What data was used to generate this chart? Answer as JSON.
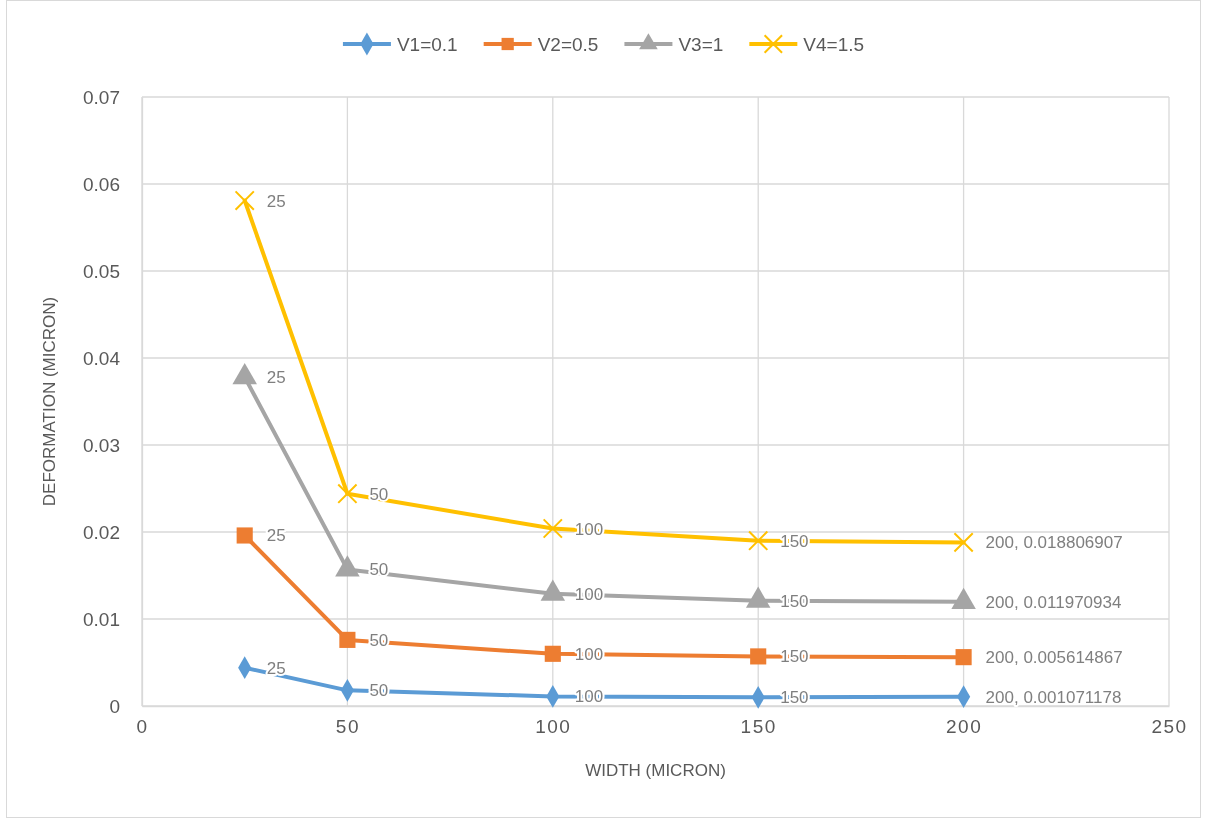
{
  "chart_data": {
    "type": "line",
    "xlabel": "WIDTH (MICRON)",
    "ylabel": "DEFORMATION (MICRON)",
    "x": [
      25,
      50,
      100,
      150,
      200
    ],
    "series": [
      {
        "name": "V1=0.1",
        "color": "#5b9bd5",
        "marker": "diamond",
        "values": [
          0.0044,
          0.0018,
          0.0011,
          0.001,
          0.001071178
        ]
      },
      {
        "name": "V2=0.5",
        "color": "#ed7d31",
        "marker": "square",
        "values": [
          0.0196,
          0.0076,
          0.006,
          0.0057,
          0.005614867
        ]
      },
      {
        "name": "V3=1",
        "color": "#a5a5a5",
        "marker": "triangle",
        "values": [
          0.0378,
          0.0157,
          0.0129,
          0.0121,
          0.011970934
        ]
      },
      {
        "name": "V4=1.5",
        "color": "#ffc000",
        "marker": "cross",
        "values": [
          0.0581,
          0.0244,
          0.0204,
          0.019,
          0.018806907
        ]
      }
    ],
    "annotations": [
      {
        "text": "25",
        "x": 25,
        "y": 0.0044
      },
      {
        "text": "50",
        "x": 50,
        "y": 0.0018
      },
      {
        "text": "100",
        "x": 100,
        "y": 0.0011
      },
      {
        "text": "150",
        "x": 150,
        "y": 0.001
      },
      {
        "text": "200, 0.001071178",
        "x": 200,
        "y": 0.001071178
      },
      {
        "text": "25",
        "x": 25,
        "y": 0.0196
      },
      {
        "text": "50",
        "x": 50,
        "y": 0.0076
      },
      {
        "text": "100",
        "x": 100,
        "y": 0.006
      },
      {
        "text": "150",
        "x": 150,
        "y": 0.0057
      },
      {
        "text": "200, 0.005614867",
        "x": 200,
        "y": 0.005614867
      },
      {
        "text": "25",
        "x": 25,
        "y": 0.0378
      },
      {
        "text": "50",
        "x": 50,
        "y": 0.0157
      },
      {
        "text": "100",
        "x": 100,
        "y": 0.0129
      },
      {
        "text": "150",
        "x": 150,
        "y": 0.0121
      },
      {
        "text": "200, 0.011970934",
        "x": 200,
        "y": 0.011970934
      },
      {
        "text": "25",
        "x": 25,
        "y": 0.0581
      },
      {
        "text": "50",
        "x": 50,
        "y": 0.0244
      },
      {
        "text": "100",
        "x": 100,
        "y": 0.0204
      },
      {
        "text": "150",
        "x": 150,
        "y": 0.019
      },
      {
        "text": "200, 0.018806907",
        "x": 200,
        "y": 0.018806907
      }
    ],
    "xlim": [
      0,
      250
    ],
    "xticks": [
      0,
      50,
      100,
      150,
      200,
      250
    ],
    "ylim": [
      0,
      0.07
    ],
    "yticks": [
      0,
      0.01,
      0.02,
      0.03,
      0.04,
      0.05,
      0.06,
      0.07
    ],
    "grid": true,
    "legend": "top",
    "line_style": "solid"
  }
}
